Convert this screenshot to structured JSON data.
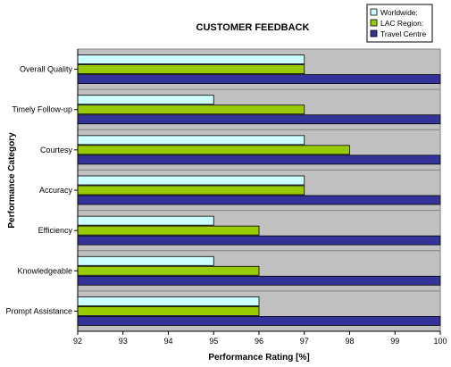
{
  "chart_data": {
    "type": "bar",
    "orientation": "horizontal",
    "title": "CUSTOMER FEEDBACK",
    "xlabel": "Performance Rating [%]",
    "ylabel": "Performance Category",
    "xlim": [
      92,
      100
    ],
    "xticks": [
      "92",
      "93",
      "94",
      "95",
      "96",
      "97",
      "98",
      "99",
      "100"
    ],
    "grid": false,
    "legend_position": "top-right",
    "plot_background": "#c0c0c0",
    "categories": [
      "Overall Quality",
      "Timely Follow-up",
      "Courtesy",
      "Accuracy",
      "Efficiency",
      "Knowledgeable",
      "Prompt Assistance"
    ],
    "series": [
      {
        "name": "Worldwide:",
        "color": "#ccffff",
        "values": [
          97,
          95,
          97,
          97,
          95,
          95,
          96
        ]
      },
      {
        "name": "LAC Region:",
        "color": "#99cc00",
        "values": [
          97,
          97,
          98,
          97,
          96,
          96,
          96
        ]
      },
      {
        "name": "Travel Centre",
        "color": "#333399",
        "values": [
          100,
          100,
          100,
          100,
          100,
          100,
          100
        ]
      }
    ]
  }
}
